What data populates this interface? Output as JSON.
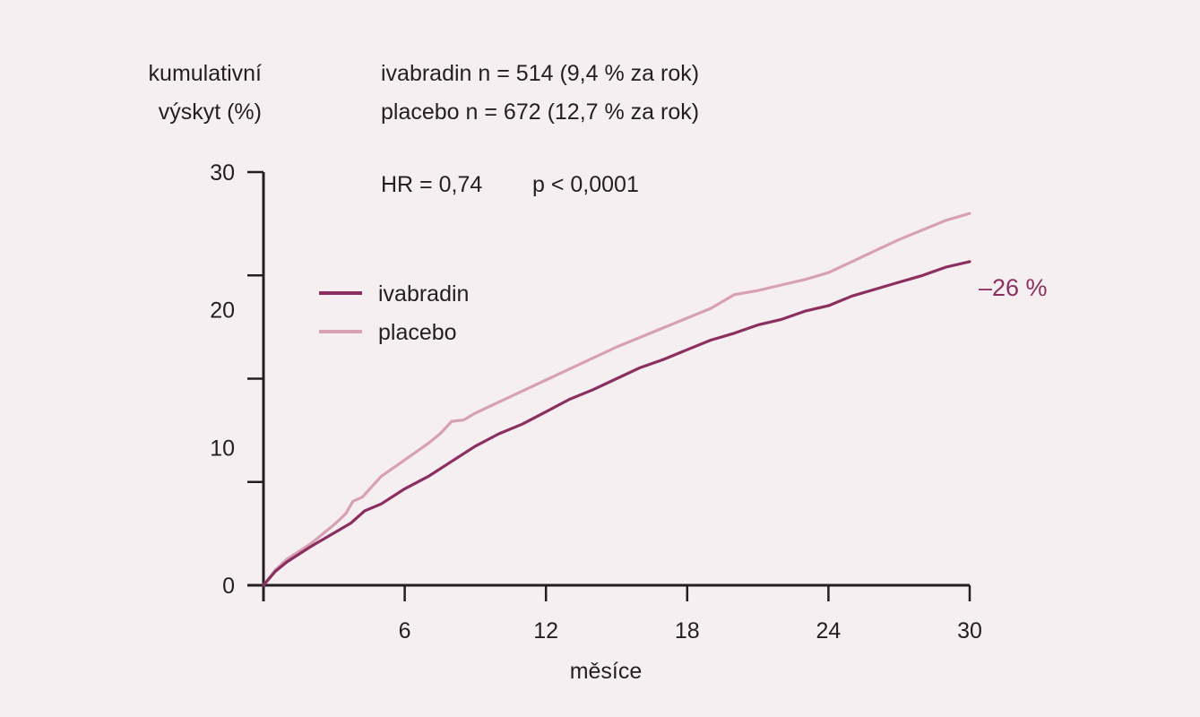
{
  "colors": {
    "background": "#f6eff2",
    "axis": "#231f20",
    "ivabradin": "#8b2f5f",
    "placebo": "#d7a0b5",
    "annotation": "#8b2f5f"
  },
  "chart_data": {
    "type": "line",
    "ylabel_line1": "kumulativní",
    "ylabel_line2": "výskyt (%)",
    "xlabel": "měsíce",
    "xlim": [
      0,
      30
    ],
    "ylim": [
      0,
      30
    ],
    "x_ticks": [
      6,
      12,
      18,
      24,
      30
    ],
    "x_minor_ticks": [
      0,
      6,
      12,
      18,
      24,
      30
    ],
    "y_ticks": [
      0,
      10,
      20,
      30
    ],
    "y_minor_ticks": [
      0,
      7.5,
      15,
      22.5,
      30
    ],
    "info_lines": [
      "ivabradin n = 514 (9,4 % za rok)",
      "placebo n = 672 (12,7 % za rok)"
    ],
    "stats": {
      "hr": "HR = 0,74",
      "p": "p < 0,0001"
    },
    "annotation": "–26 %",
    "legend": {
      "placement": "upper-left",
      "entries": [
        "ivabradin",
        "placebo"
      ]
    },
    "series": [
      {
        "name": "ivabradin",
        "color": "#8b2f5f",
        "x": [
          0,
          0.5,
          1,
          2,
          3,
          3.7,
          4.3,
          5,
          6,
          7,
          8,
          9,
          10,
          11,
          12,
          13,
          14,
          15,
          16,
          17,
          18,
          19,
          20,
          21,
          22,
          23,
          24,
          25,
          26,
          27,
          28,
          29,
          30
        ],
        "y": [
          0,
          1.0,
          1.7,
          2.8,
          3.8,
          4.5,
          5.4,
          5.9,
          7.0,
          7.9,
          9.0,
          10.1,
          11.0,
          11.7,
          12.6,
          13.5,
          14.2,
          15.0,
          15.8,
          16.4,
          17.1,
          17.8,
          18.3,
          18.9,
          19.3,
          19.9,
          20.3,
          21.0,
          21.5,
          22.0,
          22.5,
          23.1,
          23.5
        ]
      },
      {
        "name": "placebo",
        "color": "#d7a0b5",
        "x": [
          0,
          0.5,
          1,
          2,
          3,
          3.5,
          3.8,
          4.2,
          5,
          6,
          7,
          7.5,
          8,
          8.5,
          9,
          10,
          11,
          12,
          13,
          14,
          15,
          16,
          17,
          18,
          19,
          20,
          21,
          22,
          23,
          24,
          25,
          26,
          27,
          28,
          29,
          30
        ],
        "y": [
          0,
          1.1,
          1.9,
          3.0,
          4.4,
          5.2,
          6.1,
          6.4,
          7.9,
          9.1,
          10.3,
          11.0,
          11.9,
          12.0,
          12.5,
          13.3,
          14.1,
          14.9,
          15.7,
          16.5,
          17.3,
          18.0,
          18.7,
          19.4,
          20.1,
          21.1,
          21.4,
          21.8,
          22.2,
          22.7,
          23.5,
          24.3,
          25.1,
          25.8,
          26.5,
          27.0
        ]
      }
    ]
  }
}
